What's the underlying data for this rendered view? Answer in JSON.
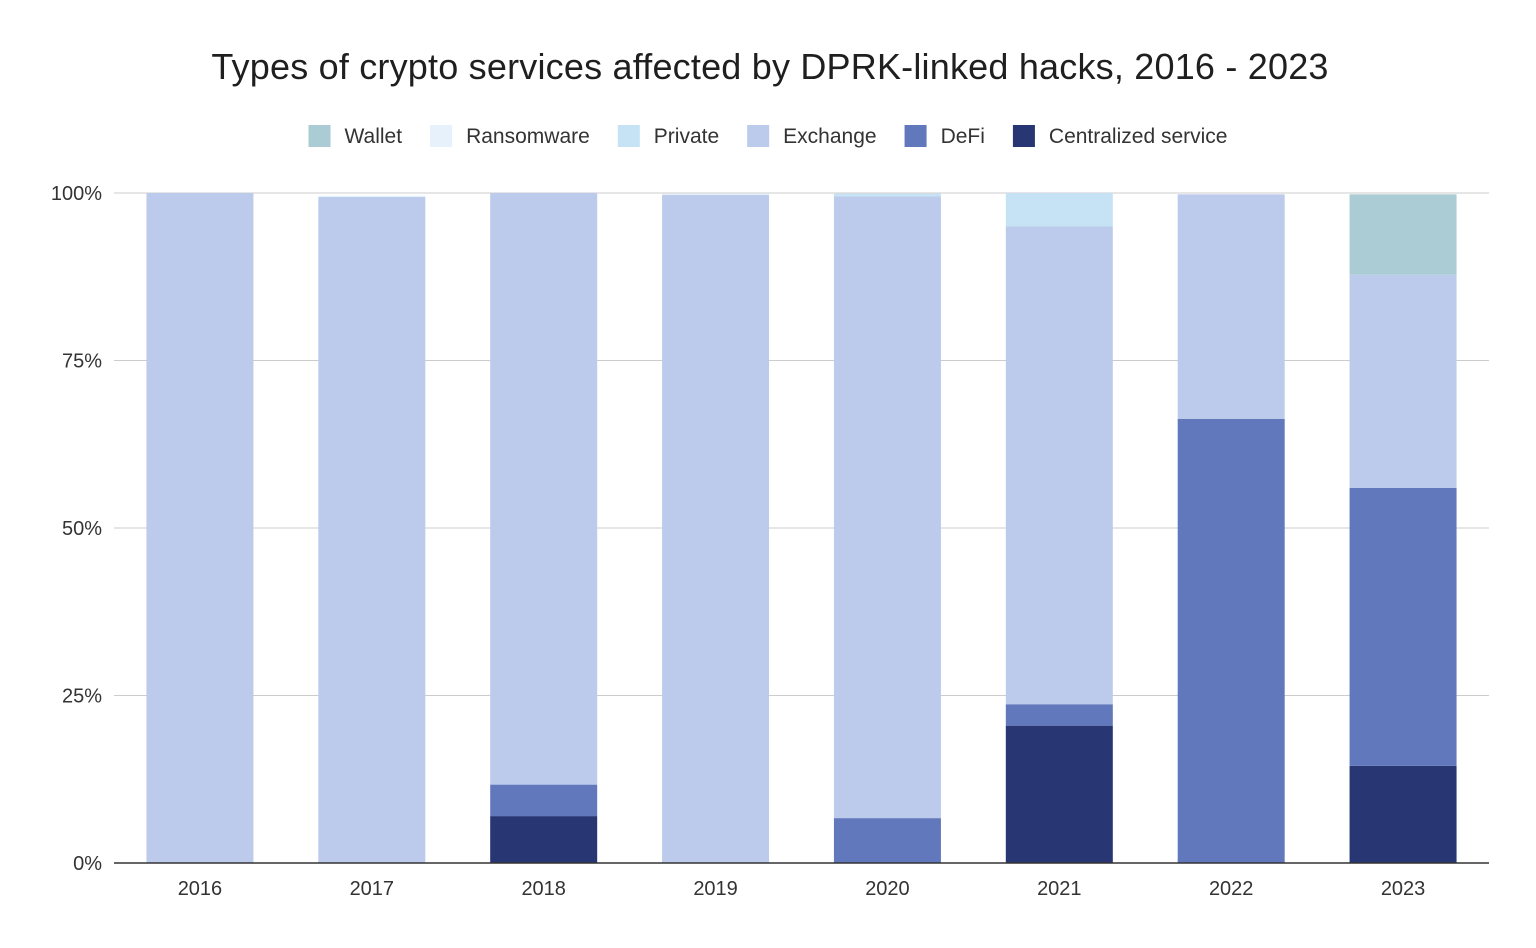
{
  "chart_data": {
    "type": "bar",
    "stacked": true,
    "title": "Types of crypto services affected by DPRK-linked hacks, 2016 - 2023",
    "xlabel": "",
    "ylabel": "",
    "ylim": [
      0,
      100
    ],
    "y_ticks": [
      "0%",
      "25%",
      "50%",
      "75%",
      "100%"
    ],
    "y_tick_values": [
      0,
      25,
      50,
      75,
      100
    ],
    "categories": [
      "2016",
      "2017",
      "2018",
      "2019",
      "2020",
      "2021",
      "2022",
      "2023"
    ],
    "legend_position": "top-center",
    "grid": true,
    "series": [
      {
        "name": "Centralized service",
        "color": "#283673",
        "values": [
          0,
          0,
          7,
          0,
          0,
          20.5,
          0,
          14.5
        ]
      },
      {
        "name": "DeFi",
        "color": "#6178bc",
        "values": [
          0,
          0,
          4.7,
          0,
          6.7,
          3.2,
          66.3,
          41.5
        ]
      },
      {
        "name": "Exchange",
        "color": "#bccbec",
        "values": [
          100,
          99.4,
          88.3,
          99.7,
          92.8,
          71.3,
          33.5,
          31.8
        ]
      },
      {
        "name": "Private",
        "color": "#c5e3f5",
        "values": [
          0,
          0,
          0,
          0,
          0.4,
          5.0,
          0,
          0
        ]
      },
      {
        "name": "Ransomware",
        "color": "#e6f1fb",
        "values": [
          0,
          0.2,
          0,
          0.2,
          0,
          0,
          0,
          0
        ]
      },
      {
        "name": "Wallet",
        "color": "#abcbd5",
        "values": [
          0,
          0,
          0,
          0,
          0,
          0,
          0,
          12.0
        ]
      }
    ],
    "legend_order": [
      "Wallet",
      "Ransomware",
      "Private",
      "Exchange",
      "DeFi",
      "Centralized service"
    ]
  }
}
